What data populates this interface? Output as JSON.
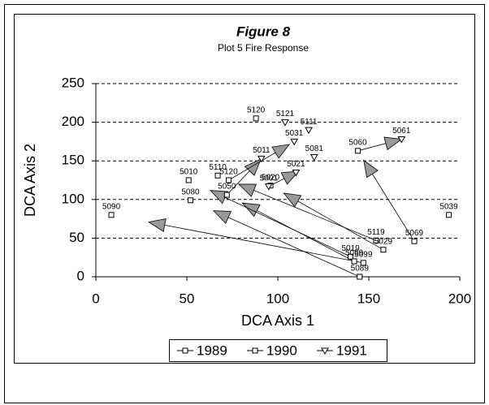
{
  "chart_data": {
    "type": "scatter",
    "title": "Figure 8",
    "subtitle": "Plot 5 Fire Response",
    "x_label": "DCA Axis 1",
    "y_label": "DCA Axis 2",
    "xlim": [
      0,
      200
    ],
    "xticks": [
      0,
      50,
      100,
      150,
      200
    ],
    "ylim": [
      0,
      250
    ],
    "yticks": [
      0,
      50,
      100,
      150,
      200,
      250
    ],
    "grid": true,
    "legend": "bottom",
    "series": [
      {
        "name": "1989",
        "marker": "square",
        "color": "#000000",
        "labels": [
          "5090",
          "5010",
          "5080",
          "5110",
          "5120",
          "5120",
          "5050",
          "5060",
          "5020"
        ],
        "x": [
          8.5,
          51,
          52,
          67,
          88,
          73,
          72,
          144,
          96
        ],
        "values": [
          80,
          125,
          99,
          131,
          205,
          125,
          106,
          163,
          118
        ]
      },
      {
        "name": "1990",
        "marker": "square",
        "color": "#000000",
        "labels": [
          "5039",
          "5119",
          "5069",
          "5029",
          "5019",
          "5059",
          "5099",
          "5089"
        ],
        "x": [
          194,
          154,
          175,
          158,
          140,
          142,
          147,
          145
        ],
        "values": [
          80,
          47,
          46,
          35,
          26,
          20,
          18,
          0
        ]
      },
      {
        "name": "1991",
        "marker": "triangle",
        "color": "#000000",
        "labels": [
          "5121",
          "5111",
          "5031",
          "5011",
          "5081",
          "5061",
          "5021",
          "5001"
        ],
        "x": [
          104,
          117,
          109,
          91,
          120,
          168,
          110,
          95
        ],
        "values": [
          200,
          190,
          175,
          153,
          155,
          178,
          135,
          117
        ]
      }
    ]
  }
}
